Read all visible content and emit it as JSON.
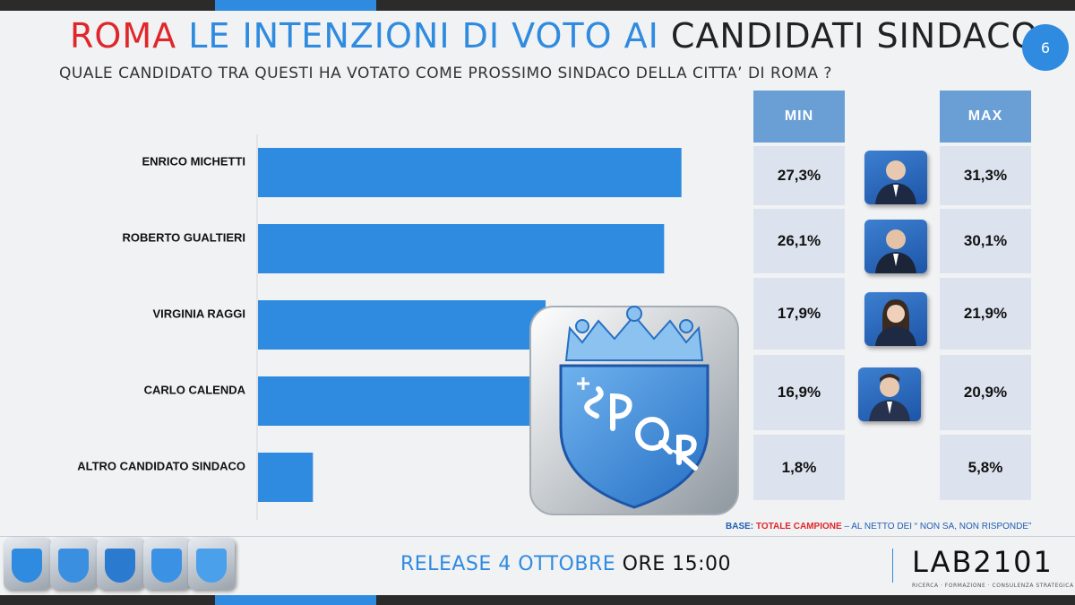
{
  "header": {
    "title_part1": "ROMA",
    "title_part2": "LE INTENZIONI DI VOTO AI",
    "title_part3": "CANDIDATI SINDACO",
    "subtitle": "QUALE CANDIDATO TRA QUESTI HA VOTATO COME PROSSIMO SINDACO DELLA CITTA’ DI ROMA ?",
    "page_number": "6"
  },
  "chart_data": {
    "type": "bar",
    "orientation": "horizontal",
    "categories": [
      "ENRICO MICHETTI",
      "ROBERTO GUALTIERI",
      "VIRGINIA RAGGI",
      "CARLO CALENDA",
      "ALTRO CANDIDATO SINDACO"
    ],
    "values": [
      29.3,
      28.1,
      19.9,
      18.9,
      3.8
    ],
    "xlim": [
      0,
      30
    ],
    "grid": false,
    "bar_color": "#2f8be0"
  },
  "range_table": {
    "min_header": "MIN",
    "max_header": "MAX",
    "rows": [
      {
        "min": "27,3%",
        "max": "31,3%",
        "photo": "candidate-photo"
      },
      {
        "min": "26,1%",
        "max": "30,1%",
        "photo": "candidate-photo"
      },
      {
        "min": "17,9%",
        "max": "21,9%",
        "photo": "candidate-photo"
      },
      {
        "min": "16,9%",
        "max": "20,9%",
        "photo": "candidate-photo"
      },
      {
        "min": "1,8%",
        "max": "5,8%",
        "photo": ""
      }
    ]
  },
  "base_note": {
    "label": "BASE:",
    "sample": "TOTALE CAMPIONE",
    "rest": "– AL NETTO DEI “ NON SA, NON RISPONDE”"
  },
  "footer": {
    "release_part1": "RELEASE 4 OTTOBRE",
    "release_part2": "ORE 15:00",
    "logo_text_a": "LAB",
    "logo_text_b": "2101",
    "logo_tagline": "RICERCA · FORMAZIONE · CONSULENZA STRATEGICA"
  },
  "colors": {
    "accent_blue": "#2f8be0",
    "accent_red": "#e0262b",
    "header_cell": "#6a9fd6",
    "value_cell": "#dde3ee"
  }
}
